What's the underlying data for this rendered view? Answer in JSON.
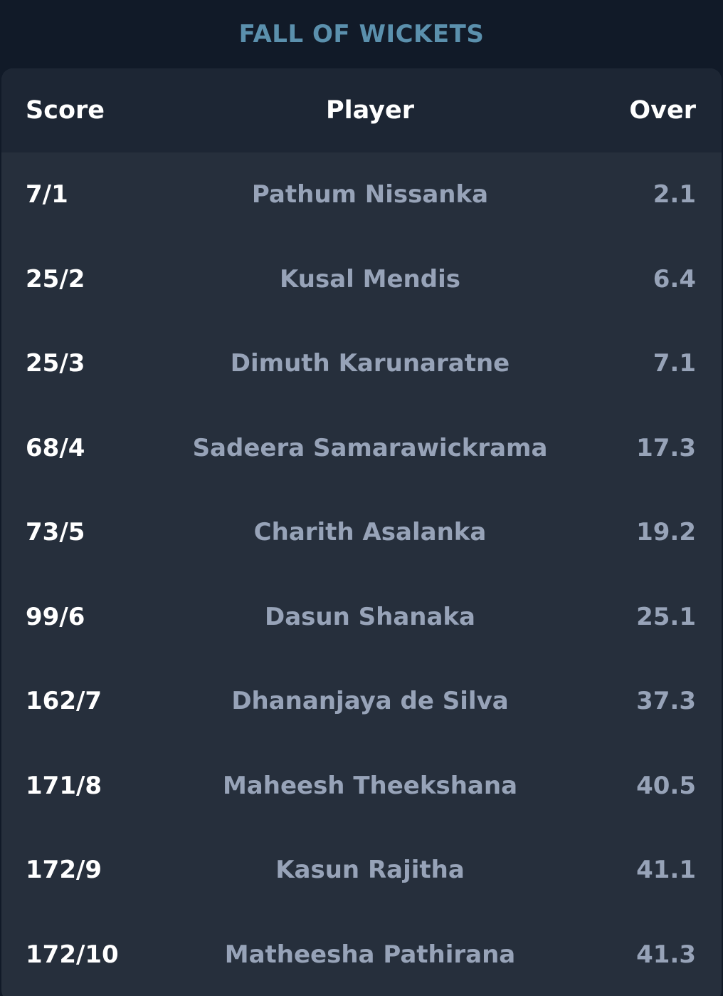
{
  "title": "FALL OF WICKETS",
  "columns": {
    "score": "Score",
    "player": "Player",
    "over": "Over"
  },
  "rows": [
    {
      "score": "7/1",
      "player": "Pathum Nissanka",
      "over": "2.1"
    },
    {
      "score": "25/2",
      "player": "Kusal Mendis",
      "over": "6.4"
    },
    {
      "score": "25/3",
      "player": "Dimuth Karunaratne",
      "over": "7.1"
    },
    {
      "score": "68/4",
      "player": "Sadeera Samarawickrama",
      "over": "17.3"
    },
    {
      "score": "73/5",
      "player": "Charith Asalanka",
      "over": "19.2"
    },
    {
      "score": "99/6",
      "player": "Dasun Shanaka",
      "over": "25.1"
    },
    {
      "score": "162/7",
      "player": "Dhananjaya de Silva",
      "over": "37.3"
    },
    {
      "score": "171/8",
      "player": "Maheesh Theekshana",
      "over": "40.5"
    },
    {
      "score": "172/9",
      "player": "Kasun Rajitha",
      "over": "41.1"
    },
    {
      "score": "172/10",
      "player": "Matheesha Pathirana",
      "over": "41.3"
    }
  ],
  "colors": {
    "background": "#111a28",
    "card": "#262f3c",
    "header_row": "#1d2634",
    "title": "#5b90ad",
    "primary_text": "#ffffff",
    "secondary_text": "#97a3b8"
  }
}
